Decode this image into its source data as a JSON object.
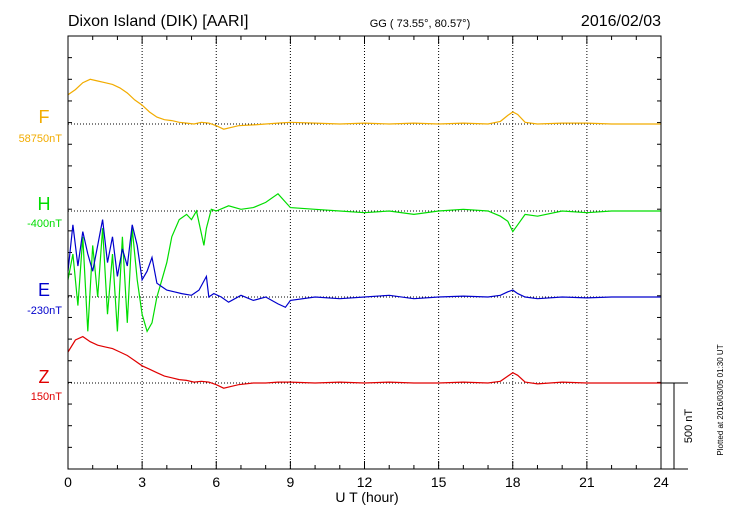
{
  "header": {
    "station": "Dixon Island (DIK)  [AARI]",
    "coords": "GG ( 73.55°,  80.57°)",
    "date": "2016/02/03"
  },
  "footer": {
    "plotted": "Plotted at 2016/03/05 01:30 UT"
  },
  "colors": {
    "F": "#f2ac00",
    "H": "#00dd00",
    "E": "#0000cc",
    "Z": "#e00000",
    "axis": "#000000",
    "grid": "#000000"
  },
  "chart_data": {
    "type": "line",
    "xlabel": "U T (hour)",
    "xlim": [
      0,
      24
    ],
    "xticks": [
      "0",
      "3",
      "6",
      "9",
      "12",
      "15",
      "18",
      "21",
      "24"
    ],
    "scale_bar": "500 nT",
    "series": [
      {
        "name": "F",
        "baseline": "58750nT",
        "x": [
          0,
          0.3,
          0.6,
          0.9,
          1.2,
          1.5,
          1.8,
          2.1,
          2.4,
          2.7,
          3.0,
          3.3,
          3.6,
          3.9,
          4.2,
          4.5,
          4.8,
          5.1,
          5.4,
          5.7,
          6.0,
          6.3,
          6.6,
          6.9,
          7.5,
          8.0,
          8.5,
          9.0,
          10,
          11,
          12,
          13,
          14,
          15,
          16,
          17,
          17.5,
          17.8,
          18.0,
          18.2,
          18.5,
          19,
          20,
          21,
          22,
          23,
          24
        ],
        "y": [
          170,
          200,
          240,
          260,
          250,
          240,
          230,
          210,
          180,
          140,
          110,
          70,
          40,
          25,
          20,
          10,
          5,
          0,
          10,
          5,
          -10,
          -30,
          -20,
          -10,
          -5,
          0,
          5,
          10,
          5,
          0,
          5,
          0,
          5,
          0,
          5,
          0,
          15,
          50,
          70,
          55,
          10,
          0,
          5,
          5,
          0,
          0,
          0
        ]
      },
      {
        "name": "H",
        "baseline": "-400nT",
        "x": [
          0,
          0.2,
          0.4,
          0.6,
          0.8,
          1.0,
          1.2,
          1.4,
          1.6,
          1.8,
          2.0,
          2.2,
          2.4,
          2.6,
          2.8,
          3.0,
          3.2,
          3.4,
          3.6,
          3.8,
          4.0,
          4.2,
          4.5,
          4.8,
          5.0,
          5.2,
          5.5,
          5.6,
          5.8,
          6.0,
          6.5,
          7.0,
          7.5,
          8.0,
          8.5,
          9.0,
          10,
          11,
          12,
          13,
          14,
          15,
          16,
          17,
          17.5,
          17.8,
          18.0,
          18.2,
          18.5,
          19,
          20,
          21,
          22,
          23,
          24
        ],
        "y": [
          -400,
          -250,
          -550,
          -150,
          -700,
          -200,
          -500,
          -100,
          -600,
          -250,
          -700,
          -150,
          -650,
          -100,
          -400,
          -600,
          -700,
          -650,
          -500,
          -400,
          -300,
          -150,
          -50,
          -20,
          -50,
          0,
          -200,
          -100,
          10,
          0,
          30,
          10,
          20,
          50,
          100,
          20,
          10,
          0,
          -10,
          0,
          -20,
          0,
          10,
          0,
          -30,
          -60,
          -120,
          -80,
          -20,
          -30,
          0,
          -10,
          0,
          0,
          0
        ]
      },
      {
        "name": "E",
        "baseline": "-230nT",
        "x": [
          0,
          0.2,
          0.4,
          0.6,
          0.8,
          1.0,
          1.2,
          1.4,
          1.6,
          1.8,
          2.0,
          2.2,
          2.4,
          2.6,
          2.8,
          3.0,
          3.2,
          3.4,
          3.6,
          3.8,
          4.0,
          4.3,
          4.6,
          5.0,
          5.3,
          5.6,
          5.7,
          5.9,
          6.2,
          6.5,
          7.0,
          7.5,
          8.0,
          8.5,
          8.8,
          9.0,
          10,
          11,
          12,
          13,
          14,
          15,
          16,
          17,
          17.5,
          17.8,
          18.0,
          18.2,
          18.5,
          19,
          20,
          21,
          22,
          23,
          24
        ],
        "y": [
          150,
          420,
          180,
          380,
          250,
          150,
          300,
          450,
          200,
          350,
          120,
          280,
          180,
          420,
          300,
          100,
          150,
          230,
          80,
          60,
          40,
          30,
          20,
          10,
          40,
          120,
          0,
          20,
          0,
          -30,
          10,
          -20,
          0,
          -40,
          -60,
          -20,
          0,
          -10,
          0,
          10,
          -10,
          0,
          5,
          0,
          10,
          30,
          40,
          20,
          0,
          -10,
          0,
          -5,
          0,
          0,
          0
        ]
      },
      {
        "name": "Z",
        "baseline": "150nT",
        "x": [
          0,
          0.3,
          0.6,
          0.9,
          1.2,
          1.5,
          1.8,
          2.1,
          2.4,
          2.7,
          3.0,
          3.3,
          3.6,
          3.9,
          4.2,
          4.5,
          4.8,
          5.1,
          5.4,
          5.7,
          6.0,
          6.3,
          6.6,
          6.9,
          7.5,
          8.0,
          8.5,
          9.0,
          10,
          11,
          12,
          13,
          14,
          15,
          16,
          17,
          17.5,
          17.8,
          18.0,
          18.2,
          18.5,
          19,
          20,
          21,
          22,
          23,
          24
        ],
        "y": [
          180,
          250,
          270,
          240,
          220,
          210,
          200,
          180,
          160,
          130,
          100,
          80,
          60,
          40,
          30,
          20,
          15,
          5,
          10,
          5,
          -10,
          -30,
          -20,
          -10,
          0,
          0,
          5,
          5,
          0,
          5,
          0,
          5,
          0,
          0,
          5,
          0,
          10,
          40,
          60,
          45,
          5,
          -5,
          5,
          0,
          0,
          0,
          0
        ]
      }
    ]
  }
}
